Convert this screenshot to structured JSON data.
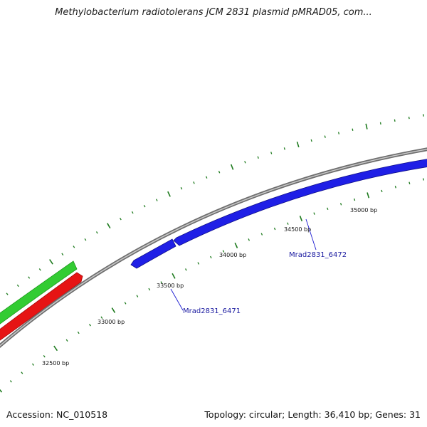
{
  "title": "Methylobacterium radiotolerans JCM 2831 plasmid pMRAD05, com...",
  "footer": {
    "accession": "Accession: NC_010518",
    "summary": "Topology: circular; Length: 36,410 bp; Genes: 31"
  },
  "colors": {
    "backbone": "#8a8a8a",
    "tick": "#1d7a1d",
    "forward_gene": "#1f1fe6",
    "reverse_gene_green": "#33cc33",
    "reverse_gene_red": "#e61414",
    "label_line": "#1a1ad0"
  },
  "tick_labels": [
    {
      "text": "32500 bp"
    },
    {
      "text": "33000 bp"
    },
    {
      "text": "33500 bp"
    },
    {
      "text": "34000 bp"
    },
    {
      "text": "34500 bp"
    },
    {
      "text": "35000 bp"
    }
  ],
  "gene_labels": [
    {
      "text": "Mrad2831_6471"
    },
    {
      "text": "Mrad2831_6472"
    }
  ]
}
